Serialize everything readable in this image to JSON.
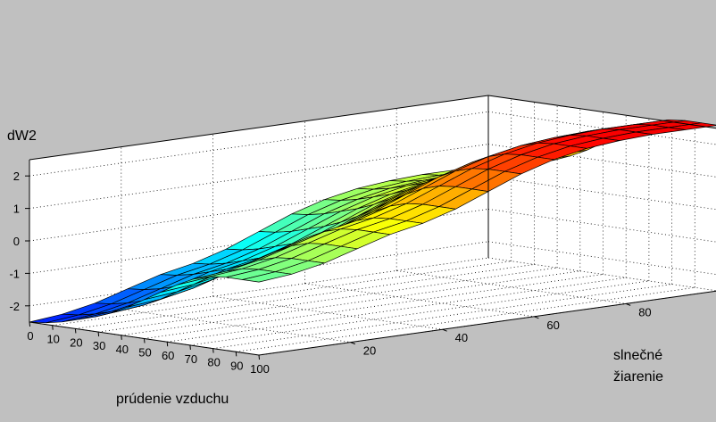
{
  "chart_data": {
    "type": "surface",
    "colormap": "jet",
    "background": "#c0c0c0",
    "pane_color": "#ffffff",
    "grid": true,
    "grid_style": "dotted",
    "mesh_color": "#000000",
    "x": {
      "label": "prúdenie vzduchu",
      "range": [
        0,
        100
      ],
      "ticks": [
        0,
        10,
        20,
        30,
        40,
        50,
        60,
        70,
        80,
        90,
        100
      ]
    },
    "y": {
      "label_lines": [
        "slnečné",
        "žiarenie"
      ],
      "range": [
        0,
        100
      ],
      "ticks": [
        20,
        40,
        60,
        80
      ]
    },
    "z": {
      "label": "dW2",
      "range": [
        -2.5,
        2.5
      ],
      "ticks": [
        -2,
        -1,
        0,
        1,
        2
      ]
    },
    "grid_size": 15,
    "surface": [
      [
        -2.5,
        -2.45,
        -2.35,
        -2.2,
        -2.05,
        -1.85,
        -1.6,
        -1.3,
        -1.0,
        -0.7,
        -0.45,
        -0.3,
        -0.25,
        -0.25,
        -0.25
      ],
      [
        -2.4,
        -2.35,
        -2.25,
        -2.1,
        -1.95,
        -1.75,
        -1.5,
        -1.2,
        -0.9,
        -0.6,
        -0.35,
        -0.2,
        -0.15,
        -0.15,
        -0.15
      ],
      [
        -2.2,
        -2.15,
        -2.05,
        -1.9,
        -1.75,
        -1.55,
        -1.3,
        -1.0,
        -0.7,
        -0.4,
        -0.15,
        0.0,
        0.05,
        0.05,
        0.05
      ],
      [
        -1.9,
        -1.85,
        -1.75,
        -1.6,
        -1.45,
        -1.25,
        -1.0,
        -0.7,
        -0.4,
        -0.1,
        0.15,
        0.3,
        0.35,
        0.35,
        0.35
      ],
      [
        -1.6,
        -1.55,
        -1.45,
        -1.3,
        -1.15,
        -0.95,
        -0.7,
        -0.4,
        -0.1,
        0.2,
        0.45,
        0.6,
        0.65,
        0.65,
        0.65
      ],
      [
        -1.4,
        -1.35,
        -1.25,
        -1.1,
        -0.95,
        -0.75,
        -0.5,
        -0.2,
        0.1,
        0.4,
        0.65,
        0.8,
        0.85,
        0.85,
        0.85
      ],
      [
        -1.1,
        -1.05,
        -0.95,
        -0.8,
        -0.65,
        -0.45,
        -0.2,
        0.1,
        0.4,
        0.7,
        0.95,
        1.1,
        1.15,
        1.15,
        1.15
      ],
      [
        -0.7,
        -0.65,
        -0.55,
        -0.4,
        -0.25,
        -0.05,
        0.2,
        0.5,
        0.8,
        1.1,
        1.35,
        1.5,
        1.55,
        1.55,
        1.55
      ],
      [
        -0.3,
        -0.25,
        -0.15,
        0.0,
        0.15,
        0.35,
        0.6,
        0.9,
        1.2,
        1.5,
        1.75,
        1.9,
        1.95,
        1.95,
        1.95
      ],
      [
        0.0,
        0.05,
        0.15,
        0.3,
        0.45,
        0.65,
        0.9,
        1.2,
        1.5,
        1.8,
        2.05,
        2.2,
        2.25,
        2.25,
        2.25
      ],
      [
        0.2,
        0.25,
        0.35,
        0.5,
        0.65,
        0.85,
        1.1,
        1.4,
        1.7,
        2.0,
        2.25,
        2.4,
        2.45,
        2.45,
        2.45
      ],
      [
        0.3,
        0.35,
        0.45,
        0.6,
        0.75,
        0.95,
        1.2,
        1.5,
        1.8,
        2.1,
        2.35,
        2.5,
        2.55,
        2.55,
        2.55
      ],
      [
        0.35,
        0.4,
        0.5,
        0.65,
        0.8,
        1.0,
        1.25,
        1.55,
        1.85,
        2.15,
        2.4,
        2.55,
        2.6,
        2.6,
        2.6
      ],
      [
        0.35,
        0.4,
        0.5,
        0.65,
        0.8,
        1.0,
        1.25,
        1.55,
        1.85,
        2.15,
        2.4,
        2.55,
        2.6,
        2.6,
        2.6
      ],
      [
        0.35,
        0.4,
        0.5,
        0.65,
        0.8,
        1.0,
        1.25,
        1.55,
        1.85,
        2.15,
        2.4,
        2.55,
        2.6,
        2.6,
        2.6
      ]
    ]
  }
}
